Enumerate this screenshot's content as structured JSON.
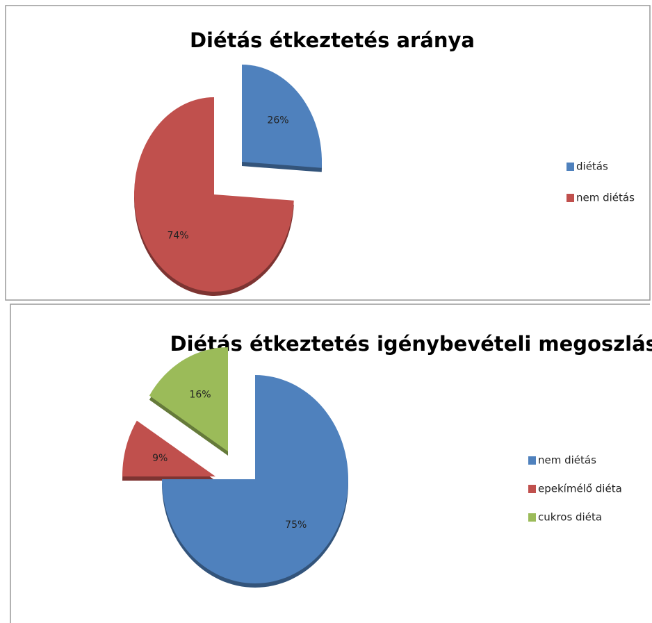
{
  "chart_data": [
    {
      "type": "pie",
      "title": "Diétás étkeztetés aránya",
      "categories": [
        "diétás",
        "nem diétás"
      ],
      "values": [
        26,
        74
      ],
      "value_labels": [
        "26%",
        "74%"
      ],
      "colors": [
        "#4f81bd",
        "#c0504d"
      ],
      "legend": "right"
    },
    {
      "type": "pie",
      "title": "Diétás étkeztetés igénybevételi megoszlása",
      "categories": [
        "nem diétás",
        "epekímélő diéta",
        "cukros diéta"
      ],
      "values": [
        75,
        9,
        16
      ],
      "value_labels": [
        "75%",
        "9%",
        "16%"
      ],
      "colors": [
        "#4f81bd",
        "#c0504d",
        "#9bbb59"
      ],
      "legend": "right"
    }
  ]
}
